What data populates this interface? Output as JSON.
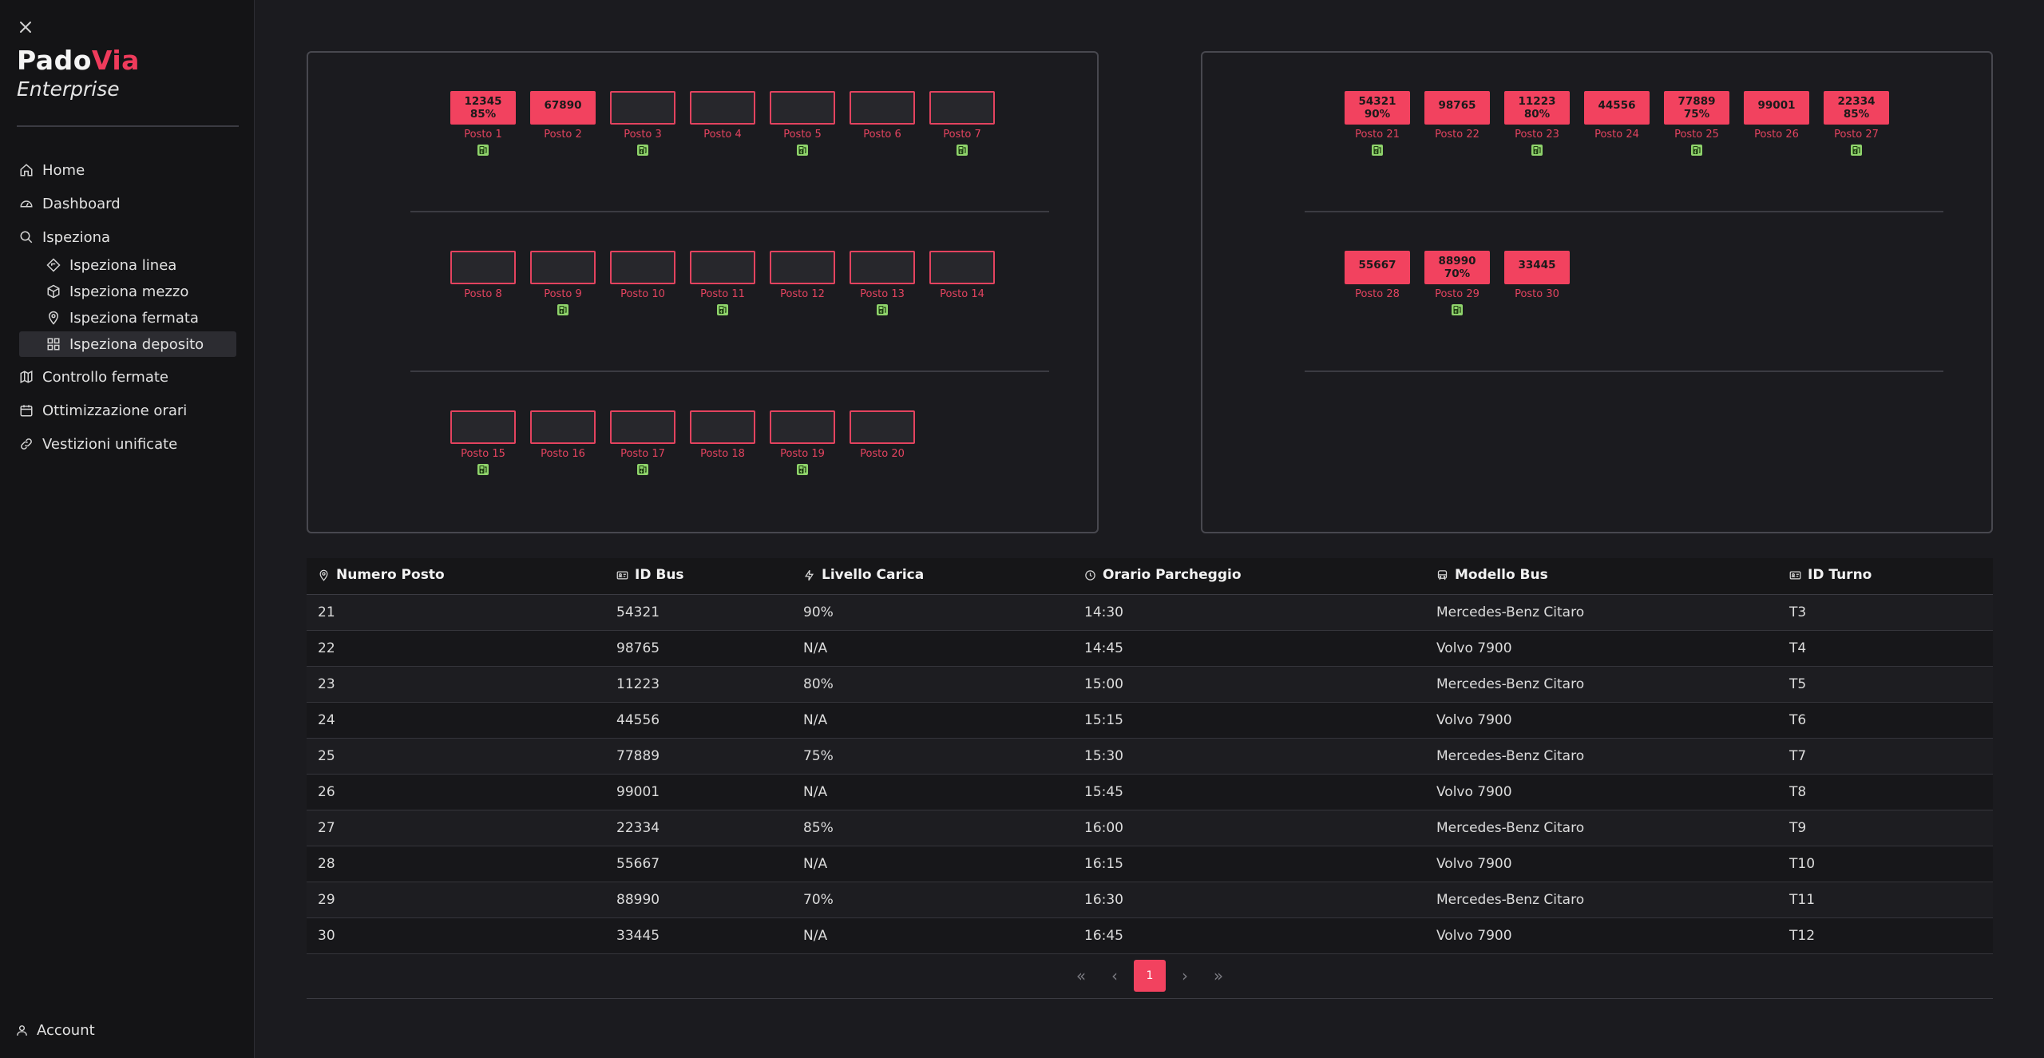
{
  "brand": {
    "name_a": "Pado",
    "name_b": "Via",
    "subtitle": "Enterprise",
    "accent_color": "#ef3b5b"
  },
  "sidebar": {
    "close_icon": "close-icon",
    "items": [
      {
        "label": "Home",
        "icon": "home-icon"
      },
      {
        "label": "Dashboard",
        "icon": "gauge-icon"
      },
      {
        "label": "Ispeziona",
        "icon": "search-icon",
        "children": [
          {
            "label": "Ispeziona linea",
            "icon": "route-icon"
          },
          {
            "label": "Ispeziona mezzo",
            "icon": "cube-icon"
          },
          {
            "label": "Ispeziona fermata",
            "icon": "map-pin-icon"
          },
          {
            "label": "Ispeziona deposito",
            "icon": "grid-icon",
            "active": true
          }
        ]
      },
      {
        "label": "Controllo fermate",
        "icon": "map-icon"
      },
      {
        "label": "Ottimizzazione orari",
        "icon": "calendar-icon"
      },
      {
        "label": "Vestizioni unificate",
        "icon": "link-icon"
      }
    ],
    "account": "Account"
  },
  "depot": {
    "left": [
      {
        "label": "Posto 1",
        "bus": "12345",
        "charge": "85%",
        "charger": true
      },
      {
        "label": "Posto 2",
        "bus": "67890",
        "charge": "",
        "charger": false
      },
      {
        "label": "Posto 3",
        "bus": "",
        "charge": "",
        "charger": true
      },
      {
        "label": "Posto 4",
        "bus": "",
        "charge": "",
        "charger": false
      },
      {
        "label": "Posto 5",
        "bus": "",
        "charge": "",
        "charger": true
      },
      {
        "label": "Posto 6",
        "bus": "",
        "charge": "",
        "charger": false
      },
      {
        "label": "Posto 7",
        "bus": "",
        "charge": "",
        "charger": true
      },
      {
        "label": "Posto 8",
        "bus": "",
        "charge": "",
        "charger": false
      },
      {
        "label": "Posto 9",
        "bus": "",
        "charge": "",
        "charger": true
      },
      {
        "label": "Posto 10",
        "bus": "",
        "charge": "",
        "charger": false
      },
      {
        "label": "Posto 11",
        "bus": "",
        "charge": "",
        "charger": true
      },
      {
        "label": "Posto 12",
        "bus": "",
        "charge": "",
        "charger": false
      },
      {
        "label": "Posto 13",
        "bus": "",
        "charge": "",
        "charger": true
      },
      {
        "label": "Posto 14",
        "bus": "",
        "charge": "",
        "charger": false
      },
      {
        "label": "Posto 15",
        "bus": "",
        "charge": "",
        "charger": true
      },
      {
        "label": "Posto 16",
        "bus": "",
        "charge": "",
        "charger": false
      },
      {
        "label": "Posto 17",
        "bus": "",
        "charge": "",
        "charger": true
      },
      {
        "label": "Posto 18",
        "bus": "",
        "charge": "",
        "charger": false
      },
      {
        "label": "Posto 19",
        "bus": "",
        "charge": "",
        "charger": true
      },
      {
        "label": "Posto 20",
        "bus": "",
        "charge": "",
        "charger": false
      }
    ],
    "right": [
      {
        "label": "Posto 21",
        "bus": "54321",
        "charge": "90%",
        "charger": true
      },
      {
        "label": "Posto 22",
        "bus": "98765",
        "charge": "",
        "charger": false
      },
      {
        "label": "Posto 23",
        "bus": "11223",
        "charge": "80%",
        "charger": true
      },
      {
        "label": "Posto 24",
        "bus": "44556",
        "charge": "",
        "charger": false
      },
      {
        "label": "Posto 25",
        "bus": "77889",
        "charge": "75%",
        "charger": true
      },
      {
        "label": "Posto 26",
        "bus": "99001",
        "charge": "",
        "charger": false
      },
      {
        "label": "Posto 27",
        "bus": "22334",
        "charge": "85%",
        "charger": true
      },
      {
        "label": "Posto 28",
        "bus": "55667",
        "charge": "",
        "charger": false
      },
      {
        "label": "Posto 29",
        "bus": "88990",
        "charge": "70%",
        "charger": true
      },
      {
        "label": "Posto 30",
        "bus": "33445",
        "charge": "",
        "charger": false
      }
    ]
  },
  "table": {
    "headers": [
      {
        "label": "Numero Posto",
        "icon": "map-pin-icon"
      },
      {
        "label": "ID Bus",
        "icon": "id-card-icon"
      },
      {
        "label": "Livello Carica",
        "icon": "bolt-icon"
      },
      {
        "label": "Orario Parcheggio",
        "icon": "clock-icon"
      },
      {
        "label": "Modello Bus",
        "icon": "bus-icon"
      },
      {
        "label": "ID Turno",
        "icon": "id-card-icon"
      }
    ],
    "rows": [
      [
        "21",
        "54321",
        "90%",
        "14:30",
        "Mercedes-Benz Citaro",
        "T3"
      ],
      [
        "22",
        "98765",
        "N/A",
        "14:45",
        "Volvo 7900",
        "T4"
      ],
      [
        "23",
        "11223",
        "80%",
        "15:00",
        "Mercedes-Benz Citaro",
        "T5"
      ],
      [
        "24",
        "44556",
        "N/A",
        "15:15",
        "Volvo 7900",
        "T6"
      ],
      [
        "25",
        "77889",
        "75%",
        "15:30",
        "Mercedes-Benz Citaro",
        "T7"
      ],
      [
        "26",
        "99001",
        "N/A",
        "15:45",
        "Volvo 7900",
        "T8"
      ],
      [
        "27",
        "22334",
        "85%",
        "16:00",
        "Mercedes-Benz Citaro",
        "T9"
      ],
      [
        "28",
        "55667",
        "N/A",
        "16:15",
        "Volvo 7900",
        "T10"
      ],
      [
        "29",
        "88990",
        "70%",
        "16:30",
        "Mercedes-Benz Citaro",
        "T11"
      ],
      [
        "30",
        "33445",
        "N/A",
        "16:45",
        "Volvo 7900",
        "T12"
      ]
    ],
    "pagination": {
      "first": "«",
      "prev": "‹",
      "current": "1",
      "next": "›",
      "last": "»"
    }
  }
}
